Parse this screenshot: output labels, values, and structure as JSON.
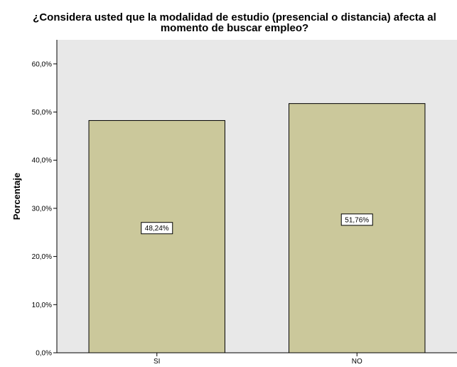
{
  "chart_data": {
    "type": "bar",
    "title_lines": [
      "¿Considera usted que la modalidad de estudio (presencial o distancia) afecta al",
      "momento de buscar empleo?"
    ],
    "xlabel": "",
    "ylabel": "Porcentaje",
    "categories": [
      "SI",
      "NO"
    ],
    "values": [
      48.24,
      51.76
    ],
    "data_labels": [
      "48,24%",
      "51,76%"
    ],
    "ylim": [
      0,
      65
    ],
    "yticks": [
      0,
      10,
      20,
      30,
      40,
      50,
      60
    ],
    "ytick_labels": [
      "0,0%",
      "10,0%",
      "20,0%",
      "30,0%",
      "40,0%",
      "50,0%",
      "60,0%"
    ],
    "grid": false,
    "legend": "none",
    "colors": {
      "plot_background": "#e8e8e8",
      "bar_fill": "#cbc89b",
      "bar_stroke": "#000000",
      "label_background": "#ffffff"
    }
  }
}
